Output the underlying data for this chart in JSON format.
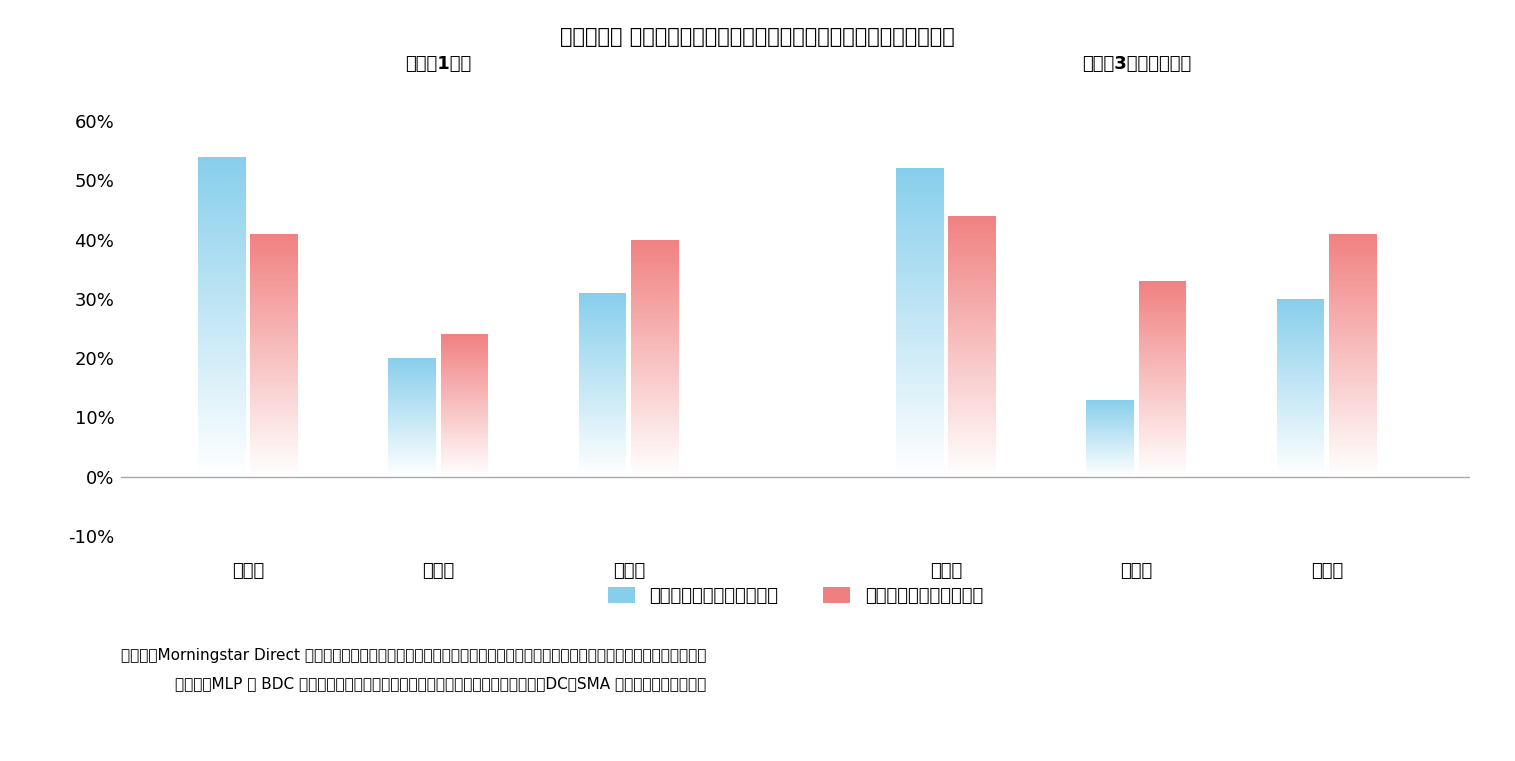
{
  "title": "》図表４「 米国株式ファンドの過去１年、過去３年のパフォーマンス",
  "title_display": "【図表４】 米国株式ファンドの過去１年、過去３年のパフォーマンス",
  "subtitle_left": "【過去1年】",
  "subtitle_right": "【過去3年（累積）】",
  "categories": [
    "最大値",
    "最小値",
    "中央値"
  ],
  "group1": {
    "non_index": [
      0.54,
      0.2,
      0.31
    ],
    "index": [
      0.41,
      0.24,
      0.4
    ]
  },
  "group2": {
    "non_index": [
      0.52,
      0.13,
      0.3
    ],
    "index": [
      0.44,
      0.33,
      0.41
    ]
  },
  "ylim": [
    -0.12,
    0.65
  ],
  "yticks": [
    -0.1,
    0.0,
    0.1,
    0.2,
    0.3,
    0.4,
    0.5,
    0.6
  ],
  "legend_non_index": "非インデックス・ファンド",
  "legend_index": "インデックス・ファンド",
  "color_non_index_top": "#87CEEB",
  "color_non_index_bottom": "#ffffff",
  "color_index_top": "#F08080",
  "color_index_bottom": "#ffffff",
  "footnote_line1": "（資料）Morningstar Direct を用いて筆者作成。イボットソン分類が「外国株式・北米型」で投資地域が「米国」のファンド。",
  "footnote_line2": "ただし、MLP や BDC に投資しているファンド、為替ヘッジをしているファンド、DC、SMA 専用ファンドは除外。",
  "background_color": "#ffffff",
  "axis_line_color": "#aaaaaa",
  "bar_width": 0.3
}
